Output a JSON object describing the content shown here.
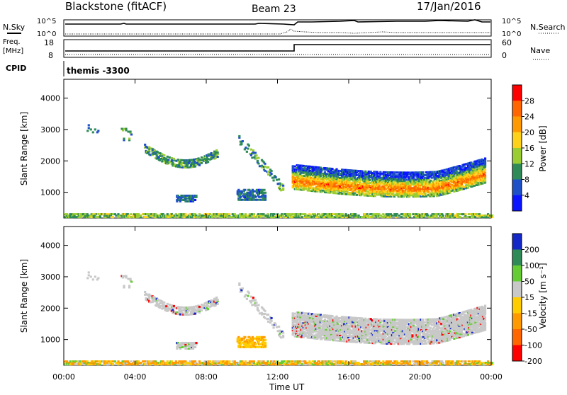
{
  "header": {
    "title": "Blackstone (fitACF)",
    "beam": "Beam 23",
    "date": "17/Jan/2016"
  },
  "top_panels": {
    "nsky_label": "N.Sky",
    "nsky_ticks": [
      "10^5",
      "10^0"
    ],
    "nsearch_label": "N.Search",
    "nsearch_ticks": [
      "10^5",
      "10^0"
    ],
    "freq_label": "Freq.",
    "freq_unit": "[MHz]",
    "freq_ticks": [
      "18",
      "8"
    ],
    "nave_label": "Nave",
    "nave_ticks": [
      "60",
      "0"
    ],
    "cpid_label": "CPID",
    "cpid_value": "themis -3300"
  },
  "chart_data": [
    {
      "type": "heatmap",
      "name": "power",
      "ylabel": "Slant Range [km]",
      "yticks": [
        1000,
        2000,
        3000,
        4000
      ],
      "ylim": [
        180,
        4600
      ],
      "xlim_hours": [
        0,
        24
      ],
      "colorbar": {
        "label": "Power [dB]",
        "ticks": [
          "28",
          "24",
          "20",
          "16",
          "12",
          "8",
          "4"
        ],
        "colors": [
          "#ff0000",
          "#ff6600",
          "#ff9900",
          "#ffd21a",
          "#9acd32",
          "#2e8b57",
          "#1e50c8",
          "#0a14ff"
        ]
      },
      "features": [
        {
          "t0": 0.8,
          "t1": 2.0,
          "r0": 2900,
          "r1": 3150,
          "level": 0.2,
          "density": 0.1
        },
        {
          "t0": 3.2,
          "t1": 3.8,
          "r0": 2650,
          "r1": 3050,
          "level": 0.25,
          "density": 0.2
        },
        {
          "t0": 4.5,
          "t1": 8.6,
          "r0": 1800,
          "r1": 2500,
          "level": 0.3,
          "density": 0.55,
          "arc": true
        },
        {
          "t0": 6.3,
          "t1": 7.4,
          "r0": 700,
          "r1": 900,
          "level": 0.2,
          "density": 0.6
        },
        {
          "t0": 9.7,
          "t1": 11.3,
          "r0": 750,
          "r1": 1100,
          "level": 0.2,
          "density": 0.6
        },
        {
          "t0": 9.8,
          "t1": 12.3,
          "r0": 1000,
          "r1": 2900,
          "level": 0.3,
          "density": 0.25,
          "diag": true
        },
        {
          "t0": 12.8,
          "t1": 23.6,
          "r0": 900,
          "r1": 2300,
          "level": 0.7,
          "density": 0.7,
          "main": true
        },
        {
          "t0": 0.0,
          "t1": 24.0,
          "r0": 200,
          "r1": 330,
          "level": 0.4,
          "density": 0.6
        }
      ]
    },
    {
      "type": "heatmap",
      "name": "velocity",
      "ylabel": "Slant Range [km]",
      "xlabel": "Time UT",
      "xticks": [
        "00:00",
        "04:00",
        "08:00",
        "12:00",
        "16:00",
        "20:00",
        "00:00"
      ],
      "yticks": [
        1000,
        2000,
        3000,
        4000
      ],
      "ylim": [
        180,
        4600
      ],
      "xlim_hours": [
        0,
        24
      ],
      "colorbar": {
        "label": "Velocity [m s⁻¹]",
        "ticks": [
          "200",
          "100",
          "50",
          "15",
          "-15",
          "-50",
          "-100",
          "-200"
        ],
        "colors": [
          "#1428c8",
          "#2e8b57",
          "#66cc33",
          "#c8c8c8",
          "#ffcc00",
          "#ff9900",
          "#ff6600",
          "#ff0000"
        ]
      }
    }
  ]
}
